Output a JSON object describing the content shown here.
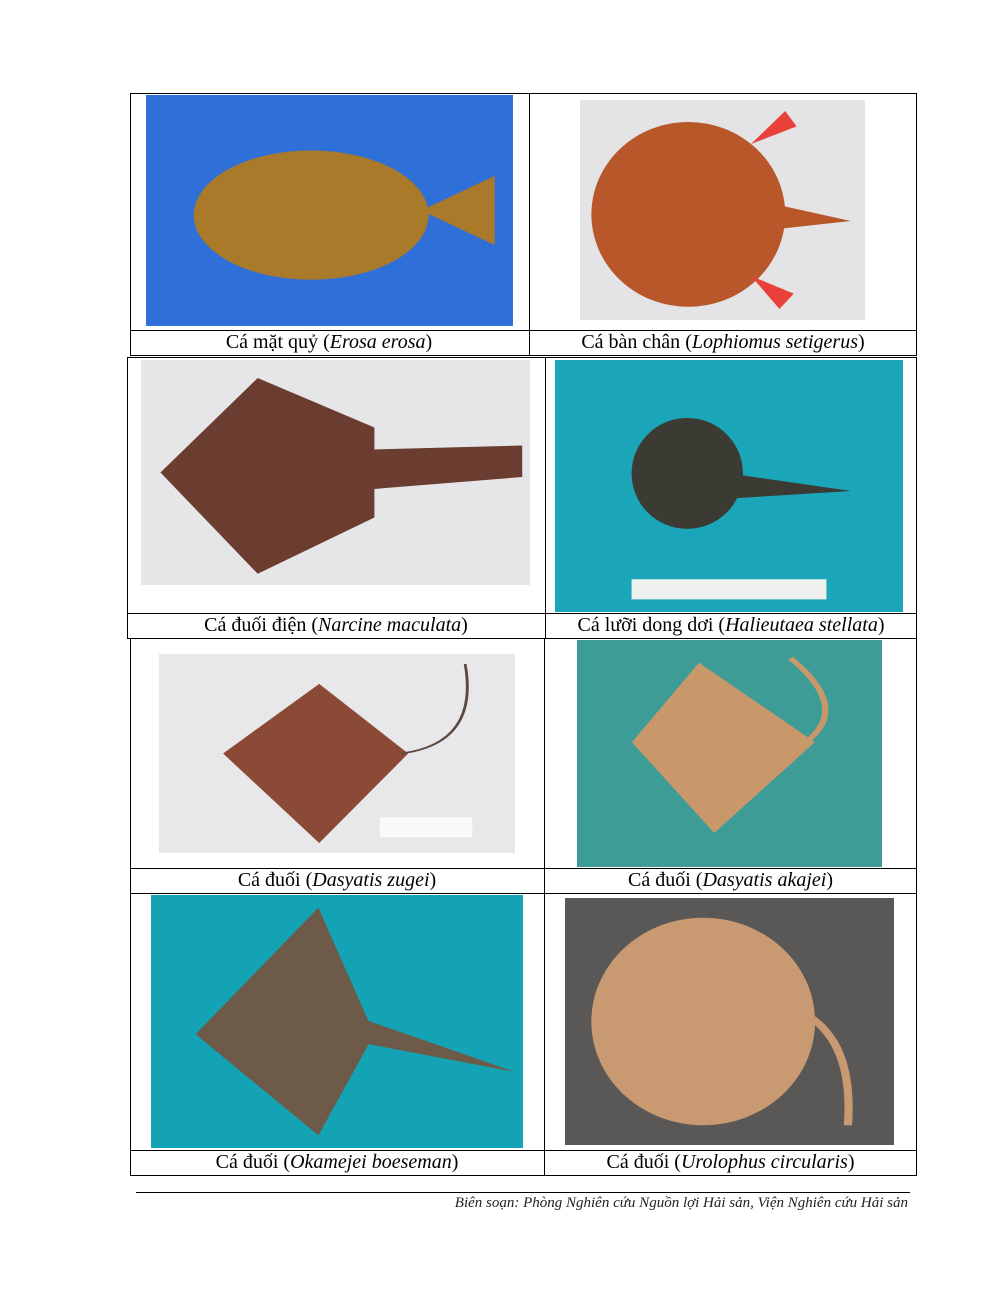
{
  "species": [
    {
      "common": "Cá mặt quỷ",
      "scientific": "Erosa erosa",
      "photo_bg": "#2f6fd8",
      "fish_color": "#a87a2a"
    },
    {
      "common": "Cá bàn chân",
      "scientific": "Lophiomus setigerus",
      "photo_bg": "#e4e4e6",
      "fish_color": "#b8572a"
    },
    {
      "common": "Cá đuối điện",
      "scientific": "Narcine maculata",
      "photo_bg": "#e6e6e8",
      "fish_color": "#6b3d30"
    },
    {
      "common": "Cá lưỡi dong dơi",
      "scientific": "Halieutaea stellata",
      "photo_bg": "#1aa5b8",
      "fish_color": "#3b3a33"
    },
    {
      "common": "Cá đuối",
      "scientific": "Dasyatis zugei",
      "photo_bg": "#e8e8ea",
      "fish_color": "#8a4a35"
    },
    {
      "common": "Cá đuối",
      "scientific": "Dasyatis akajei",
      "photo_bg": "#3e9c96",
      "fish_color": "#c9986a"
    },
    {
      "common": "Cá đuối",
      "scientific": "Okamejei boeseman",
      "photo_bg": "#14a3b5",
      "fish_color": "#6d5a48"
    },
    {
      "common": "Cá đuối",
      "scientific": "Urolophus circularis",
      "photo_bg": "#5a5856",
      "fish_color": "#c99a72"
    }
  ],
  "footer": "Biên soạn: Phòng Nghiên cứu Nguồn lợi Hải sản, Viện Nghiên cứu Hải sản"
}
